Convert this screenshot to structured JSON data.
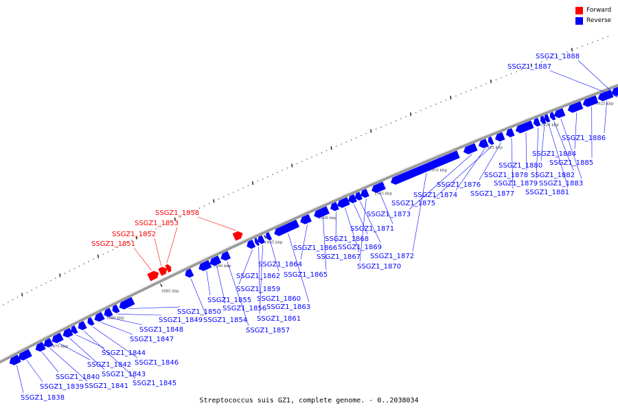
{
  "legend": {
    "forward_label": "Forward",
    "reverse_label": "Reverse",
    "forward_color": "#ff0000",
    "reverse_color": "#0000ff"
  },
  "caption": "Streptococcus suis GZ1, complete genome. - 0..2038034",
  "tick_labels": [
    "1875 kbp",
    "1880 kbp",
    "1885 kbp",
    "1890 kbp",
    "1895 kbp",
    "1900 kbp",
    "1905 kbp",
    "1910 kbp",
    "1915 kbp",
    "1920 kbp",
    "1925 kbp"
  ],
  "genes": [
    {
      "label": "SSGZ1_1838",
      "strand": "reverse"
    },
    {
      "label": "SSGZ1_1839",
      "strand": "reverse"
    },
    {
      "label": "SSGZ1_1840",
      "strand": "reverse"
    },
    {
      "label": "SSGZ1_1841",
      "strand": "reverse"
    },
    {
      "label": "SSGZ1_1842",
      "strand": "reverse"
    },
    {
      "label": "SSGZ1_1843",
      "strand": "reverse"
    },
    {
      "label": "SSGZ1_1844",
      "strand": "reverse"
    },
    {
      "label": "SSGZ1_1845",
      "strand": "reverse"
    },
    {
      "label": "SSGZ1_1846",
      "strand": "reverse"
    },
    {
      "label": "SSGZ1_1847",
      "strand": "reverse"
    },
    {
      "label": "SSGZ1_1848",
      "strand": "reverse"
    },
    {
      "label": "SSGZ1_1849",
      "strand": "reverse"
    },
    {
      "label": "SSGZ1_1850",
      "strand": "reverse"
    },
    {
      "label": "SSGZ1_1851",
      "strand": "forward"
    },
    {
      "label": "SSGZ1_1852",
      "strand": "forward"
    },
    {
      "label": "SSGZ1_1853",
      "strand": "forward"
    },
    {
      "label": "SSGZ1_1854",
      "strand": "reverse"
    },
    {
      "label": "SSGZ1_1855",
      "strand": "reverse"
    },
    {
      "label": "SSGZ1_1856",
      "strand": "reverse"
    },
    {
      "label": "SSGZ1_1857",
      "strand": "reverse"
    },
    {
      "label": "SSGZ1_1858",
      "strand": "forward"
    },
    {
      "label": "SSGZ1_1859",
      "strand": "reverse"
    },
    {
      "label": "SSGZ1_1860",
      "strand": "reverse"
    },
    {
      "label": "SSGZ1_1861",
      "strand": "reverse"
    },
    {
      "label": "SSGZ1_1862",
      "strand": "reverse"
    },
    {
      "label": "SSGZ1_1863",
      "strand": "reverse"
    },
    {
      "label": "SSGZ1_1864",
      "strand": "reverse"
    },
    {
      "label": "SSGZ1_1865",
      "strand": "reverse"
    },
    {
      "label": "SSGZ1_1866",
      "strand": "reverse"
    },
    {
      "label": "SSGZ1_1867",
      "strand": "reverse"
    },
    {
      "label": "SSGZ1_1868",
      "strand": "reverse"
    },
    {
      "label": "SSGZ1_1869",
      "strand": "reverse"
    },
    {
      "label": "SSGZ1_1870",
      "strand": "reverse"
    },
    {
      "label": "SSGZ1_1871",
      "strand": "reverse"
    },
    {
      "label": "SSGZ1_1872",
      "strand": "reverse"
    },
    {
      "label": "SSGZ1_1873",
      "strand": "reverse"
    },
    {
      "label": "SSGZ1_1874",
      "strand": "reverse"
    },
    {
      "label": "SSGZ1_1875",
      "strand": "reverse"
    },
    {
      "label": "SSGZ1_1876",
      "strand": "reverse"
    },
    {
      "label": "SSGZ1_1877",
      "strand": "reverse"
    },
    {
      "label": "SSGZ1_1878",
      "strand": "reverse"
    },
    {
      "label": "SSGZ1_1879",
      "strand": "reverse"
    },
    {
      "label": "SSGZ1_1880",
      "strand": "reverse"
    },
    {
      "label": "SSGZ1_1881",
      "strand": "reverse"
    },
    {
      "label": "SSGZ1_1882",
      "strand": "reverse"
    },
    {
      "label": "SSGZ1_1883",
      "strand": "reverse"
    },
    {
      "label": "SSGZ1_1884",
      "strand": "reverse"
    },
    {
      "label": "SSGZ1_1885",
      "strand": "reverse"
    },
    {
      "label": "SSGZ1_1886",
      "strand": "reverse"
    },
    {
      "label": "SSGZ1_1887",
      "strand": "reverse"
    },
    {
      "label": "SSGZ1_1888",
      "strand": "reverse"
    }
  ]
}
